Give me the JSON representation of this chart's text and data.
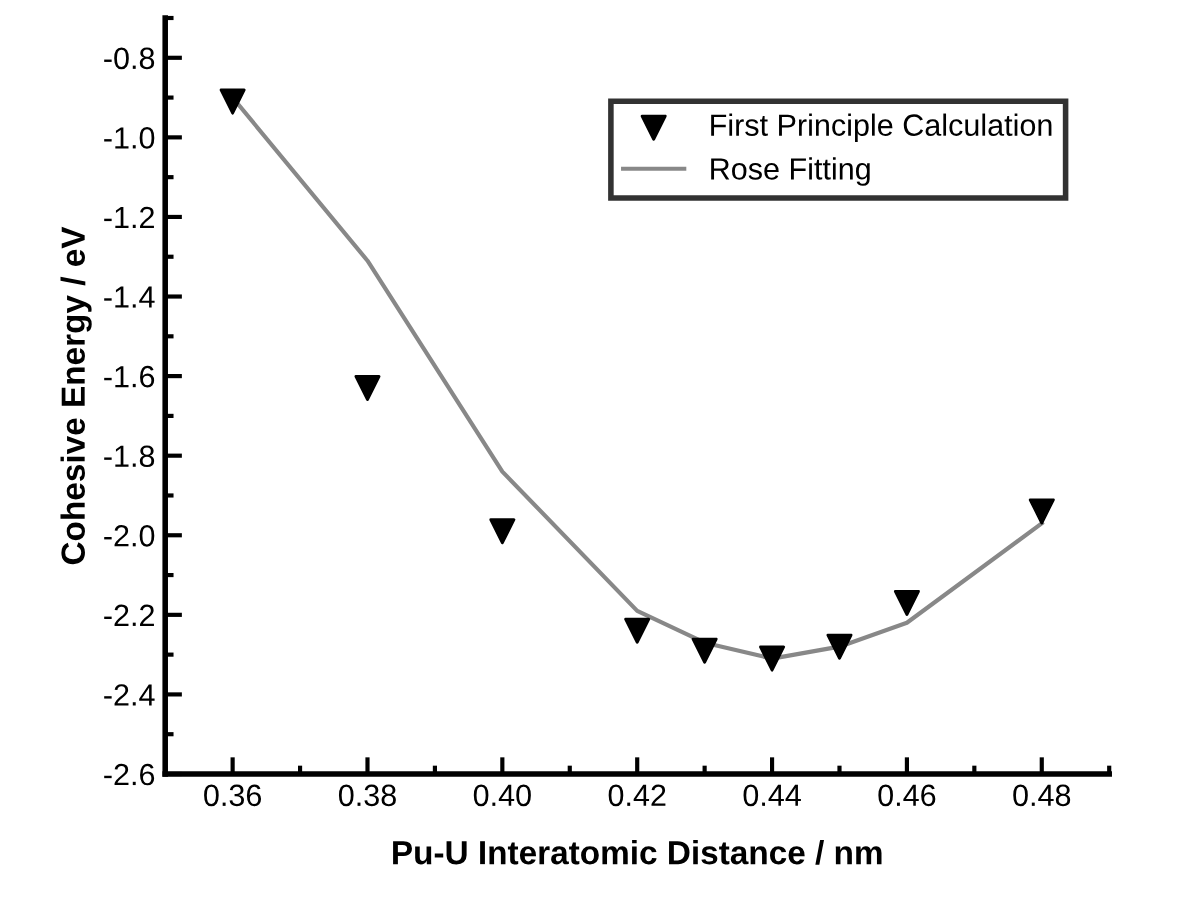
{
  "chart_data": {
    "type": "scatter",
    "xlabel": "Pu-U Interatomic Distance / nm",
    "ylabel": "Cohesive Energy / eV",
    "xlim": [
      0.35,
      0.49
    ],
    "ylim": [
      -2.6,
      -0.7
    ],
    "xticks": [
      {
        "value": 0.36,
        "label": "0.36"
      },
      {
        "value": 0.38,
        "label": "0.38"
      },
      {
        "value": 0.4,
        "label": "0.40"
      },
      {
        "value": 0.42,
        "label": "0.42"
      },
      {
        "value": 0.44,
        "label": "0.44"
      },
      {
        "value": 0.46,
        "label": "0.46"
      },
      {
        "value": 0.48,
        "label": "0.48"
      }
    ],
    "yticks": [
      {
        "value": -0.8,
        "label": "-0.8"
      },
      {
        "value": -1.0,
        "label": "-1.0"
      },
      {
        "value": -1.2,
        "label": "-1.2"
      },
      {
        "value": -1.4,
        "label": "-1.4"
      },
      {
        "value": -1.6,
        "label": "-1.6"
      },
      {
        "value": -1.8,
        "label": "-1.8"
      },
      {
        "value": -2.0,
        "label": "-2.0"
      },
      {
        "value": -2.2,
        "label": "-2.2"
      },
      {
        "value": -2.4,
        "label": "-2.4"
      },
      {
        "value": -2.6,
        "label": "-2.6"
      }
    ],
    "grid": false,
    "legend": "top right",
    "series": [
      {
        "name": "First Principle Calculation",
        "marker": "triangle",
        "color": "#000000",
        "x": [
          0.36,
          0.38,
          0.4,
          0.42,
          0.43,
          0.44,
          0.45,
          0.46,
          0.48
        ],
        "values": [
          -0.91,
          -1.63,
          -1.99,
          -2.24,
          -2.29,
          -2.31,
          -2.28,
          -2.17,
          -1.94
        ]
      },
      {
        "name": "Rose Fitting",
        "type": "line",
        "line_style": "solid",
        "color": "#888888",
        "x": [
          0.36,
          0.38,
          0.4,
          0.42,
          0.43,
          0.44,
          0.45,
          0.46,
          0.48
        ],
        "values": [
          -0.9,
          -1.31,
          -1.84,
          -2.19,
          -2.27,
          -2.31,
          -2.28,
          -2.22,
          -1.97
        ]
      }
    ]
  }
}
